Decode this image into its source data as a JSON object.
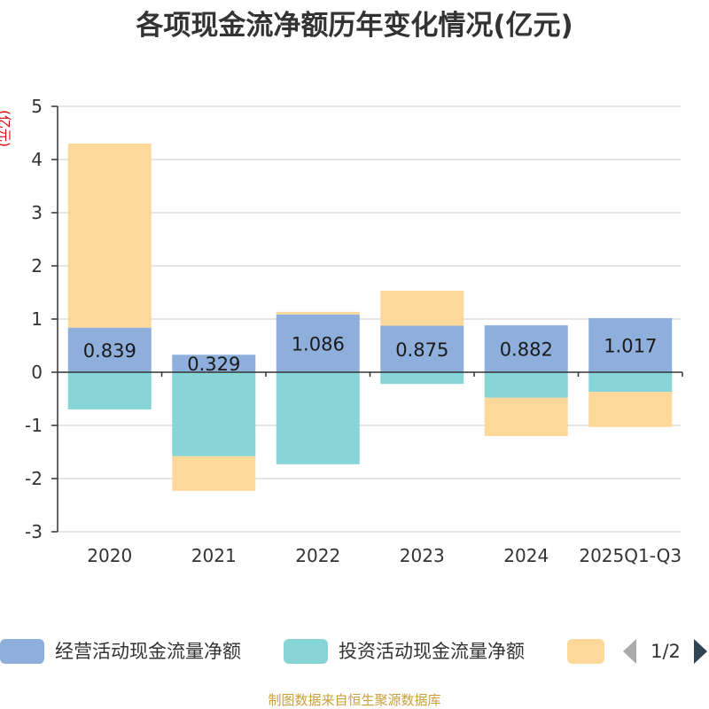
{
  "chart_data": {
    "type": "bar",
    "stacked": true,
    "title": "各项现金流净额历年变化情况(亿元)",
    "ylabel": "(亿元)",
    "xlabel": "",
    "categories": [
      "2020",
      "2021",
      "2022",
      "2023",
      "2024",
      "2025Q1-Q3"
    ],
    "ylim": [
      -3,
      5
    ],
    "yticks": [
      -3,
      -2,
      -1,
      0,
      1,
      2,
      3,
      4,
      5
    ],
    "grid": true,
    "legend_position": "bottom",
    "series": [
      {
        "name": "经营活动现金流量净额",
        "color": "#8eaedc",
        "show_labels": true,
        "values": [
          0.839,
          0.329,
          1.086,
          0.875,
          0.882,
          1.017
        ]
      },
      {
        "name": "投资活动现金流量净额",
        "color": "#88d5d8",
        "show_labels": false,
        "values": [
          -0.7,
          -1.58,
          -1.73,
          -0.22,
          -0.48,
          -0.37
        ]
      },
      {
        "name": "",
        "color": "#fdd89b",
        "show_labels": false,
        "values": [
          3.46,
          -0.65,
          0.05,
          0.66,
          -0.72,
          -0.66
        ]
      }
    ]
  },
  "legend": {
    "page": "1/2",
    "prev_icon": "triangle-left-icon",
    "next_icon": "triangle-right-icon",
    "prev_color": "#aaaaaa",
    "next_color": "#2f4554"
  },
  "footer": {
    "source": "制图数据来自恒生聚源数据库"
  }
}
